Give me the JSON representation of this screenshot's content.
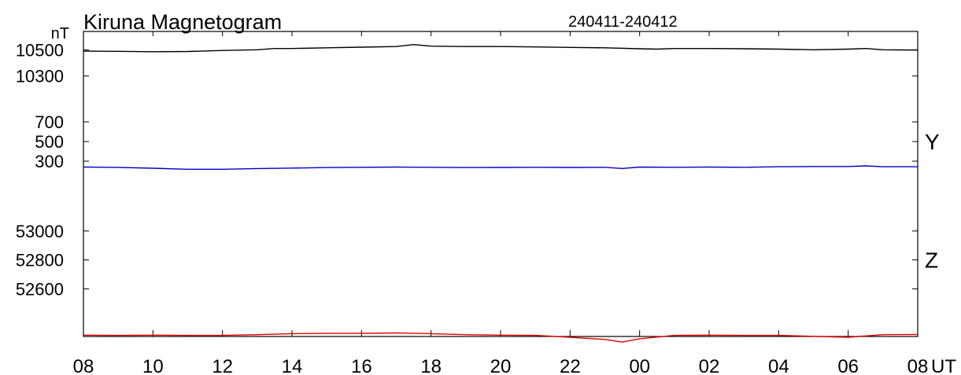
{
  "title": "Kiruna Magnetogram",
  "date_range": "240411-240412",
  "y_unit": "nT",
  "x_unit": "UT",
  "colors": {
    "X": "#000000",
    "Y": "#0000c8",
    "Z": "#e00000",
    "axes": "#000000"
  },
  "chart_data": {
    "type": "line",
    "title": "Kiruna Magnetogram",
    "subtitle": "240411-240412",
    "xlabel": "UT",
    "ylabel": "nT",
    "x_ticks": [
      "08",
      "10",
      "12",
      "14",
      "16",
      "18",
      "20",
      "22",
      "00",
      "02",
      "04",
      "06",
      "08"
    ],
    "x_range_hours": [
      0,
      24
    ],
    "grid": false,
    "panels": [
      {
        "component": "",
        "y_ticks": [
          10500,
          10300
        ],
        "ylim": [
          10100,
          10700
        ],
        "color": "#000000",
        "x": [
          0,
          1,
          2,
          3,
          4,
          5,
          5.5,
          6,
          7,
          8,
          9,
          9.5,
          10,
          11,
          12,
          13,
          14,
          15,
          16,
          16.5,
          17,
          18,
          19,
          20,
          21,
          22,
          22.5,
          23,
          24
        ],
        "values": [
          10490,
          10488,
          10485,
          10487,
          10495,
          10500,
          10510,
          10510,
          10515,
          10520,
          10525,
          10540,
          10528,
          10525,
          10525,
          10522,
          10518,
          10515,
          10508,
          10505,
          10510,
          10510,
          10508,
          10505,
          10500,
          10505,
          10510,
          10500,
          10498
        ]
      },
      {
        "component": "Y",
        "y_ticks": [
          700,
          500,
          300
        ],
        "ylim": [
          100,
          900
        ],
        "color": "#0000c8",
        "x": [
          0,
          1,
          2,
          3,
          4,
          5,
          6,
          7,
          8,
          9,
          10,
          11,
          12,
          13,
          14,
          15,
          15.5,
          16,
          17,
          18,
          19,
          20,
          21,
          22,
          22.5,
          23,
          24
        ],
        "values": [
          240,
          237,
          228,
          218,
          218,
          225,
          230,
          235,
          238,
          240,
          238,
          235,
          236,
          238,
          236,
          238,
          226,
          240,
          238,
          240,
          238,
          243,
          246,
          246,
          252,
          243,
          243
        ]
      },
      {
        "component": "Z",
        "y_ticks": [
          53000,
          52800,
          52600
        ],
        "ylim": [
          52200,
          53200
        ],
        "color": "#e00000",
        "x": [
          0,
          1,
          2,
          3,
          4,
          5,
          6,
          7,
          8,
          9,
          10,
          11,
          12,
          13,
          14,
          15,
          15.5,
          16,
          17,
          18,
          19,
          20,
          21,
          22,
          23,
          24
        ],
        "values": [
          52280,
          52278,
          52280,
          52278,
          52278,
          52283,
          52290,
          52292,
          52292,
          52295,
          52290,
          52283,
          52280,
          52278,
          52265,
          52250,
          52232,
          52255,
          52278,
          52280,
          52278,
          52278,
          52272,
          52265,
          52283,
          52285
        ]
      }
    ]
  }
}
